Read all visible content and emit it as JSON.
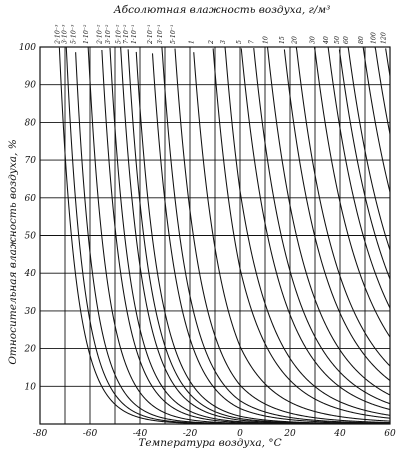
{
  "chart_data": {
    "type": "line",
    "title": "Абсолютная влажность воздуха, г/м³",
    "xlabel": "Температура воздуха, °C",
    "ylabel": "Относительная влажность воздуха, %",
    "xlim": [
      -80,
      60
    ],
    "ylim": [
      0,
      100
    ],
    "xticks": [
      -80,
      -60,
      -40,
      -20,
      0,
      20,
      40,
      60
    ],
    "yticks": [
      10,
      20,
      30,
      40,
      50,
      60,
      70,
      80,
      90,
      100
    ],
    "ytick_labels": [
      "10",
      "20",
      "30",
      "40",
      "50",
      "60",
      "70",
      "80",
      "90",
      "100"
    ],
    "xtick_labels": [
      "-80",
      "-60",
      "-40",
      "-20",
      "0",
      "20",
      "40",
      "60"
    ],
    "grid": true,
    "series": [
      {
        "name": "2·10⁻³",
        "value": 0.002
      },
      {
        "name": "3·10⁻³",
        "value": 0.003
      },
      {
        "name": "5·10⁻³",
        "value": 0.005
      },
      {
        "name": "1·10⁻²",
        "value": 0.01
      },
      {
        "name": "2·10⁻²",
        "value": 0.02
      },
      {
        "name": "3·10⁻²",
        "value": 0.03
      },
      {
        "name": "5·10⁻²",
        "value": 0.05
      },
      {
        "name": "7·10⁻²",
        "value": 0.07
      },
      {
        "name": "1·10⁻¹",
        "value": 0.1
      },
      {
        "name": "2·10⁻¹",
        "value": 0.2
      },
      {
        "name": "3·10⁻¹",
        "value": 0.3
      },
      {
        "name": "5·10⁻¹",
        "value": 0.5
      },
      {
        "name": "1",
        "value": 1
      },
      {
        "name": "2",
        "value": 2
      },
      {
        "name": "3",
        "value": 3
      },
      {
        "name": "5",
        "value": 5
      },
      {
        "name": "7",
        "value": 7
      },
      {
        "name": "10",
        "value": 10
      },
      {
        "name": "15",
        "value": 15
      },
      {
        "name": "20",
        "value": 20
      },
      {
        "name": "30",
        "value": 30
      },
      {
        "name": "40",
        "value": 40
      },
      {
        "name": "50",
        "value": 50
      },
      {
        "name": "60",
        "value": 60
      },
      {
        "name": "80",
        "value": 80
      },
      {
        "name": "100",
        "value": 100
      },
      {
        "name": "120",
        "value": 120
      }
    ]
  }
}
